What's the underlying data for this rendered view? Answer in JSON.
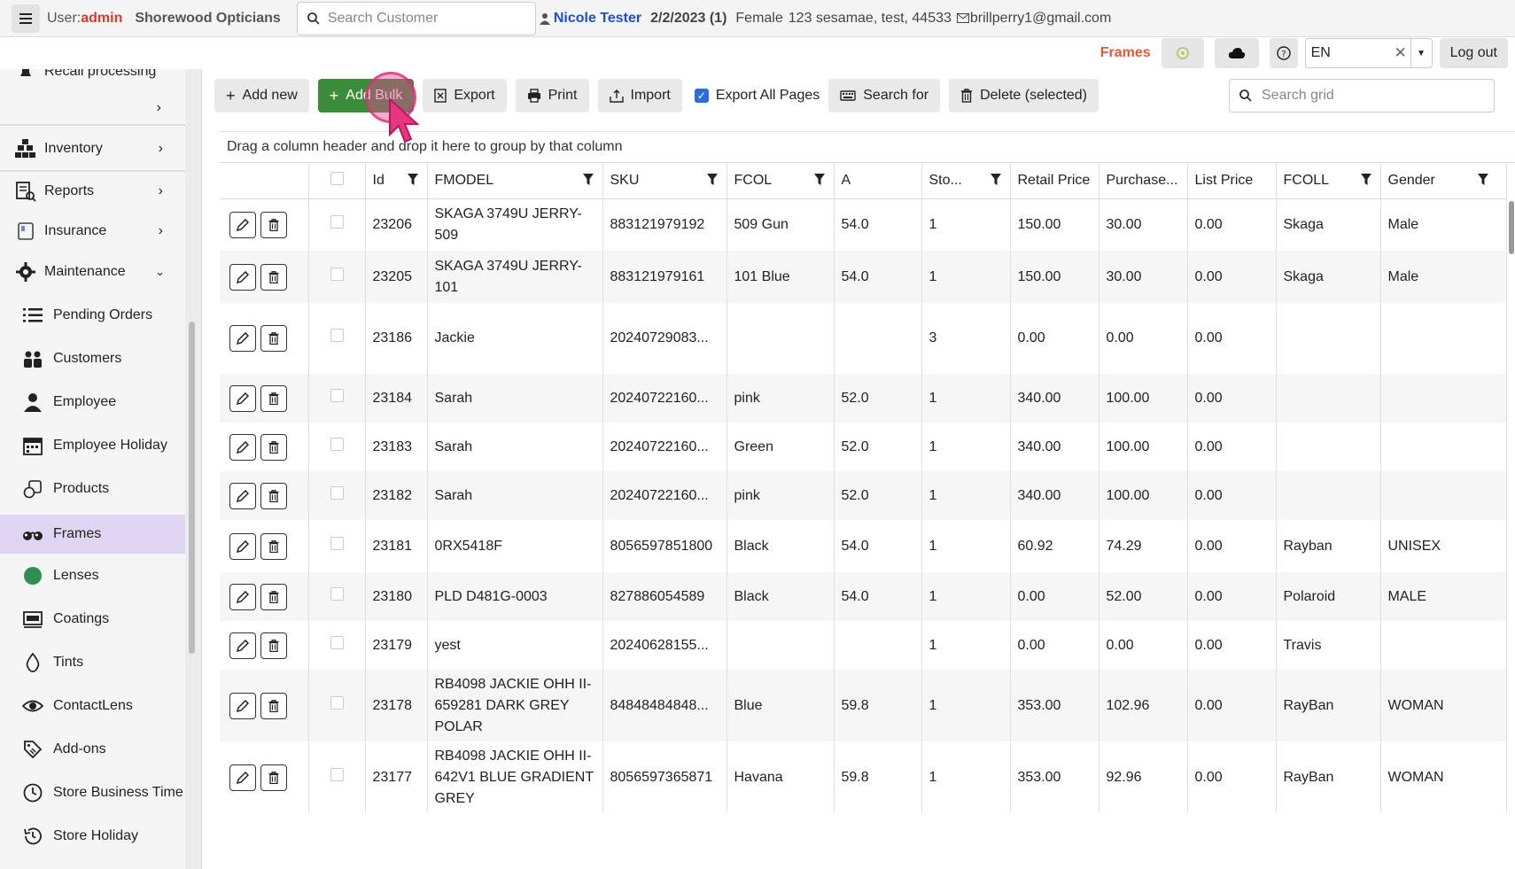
{
  "topbar": {
    "user_prefix": "User:",
    "user_name": "admin",
    "store_name": "Shorewood Opticians",
    "search_placeholder": "Search Customer",
    "patient_name": "Nicole Tester",
    "patient_date": "2/2/2023 (1)",
    "patient_gender": "Female",
    "patient_address": "123 sesamae, test, 44533",
    "patient_email": "brillperry1@gmail.com"
  },
  "secondbar": {
    "page_title": "Frames",
    "language": "EN",
    "logout_label": "Log out"
  },
  "sidebar": {
    "partial_top": "Recall processing",
    "inventory": "Inventory",
    "reports": "Reports",
    "insurance": "Insurance",
    "maintenance": "Maintenance",
    "items": [
      {
        "label": "Pending Orders"
      },
      {
        "label": "Customers"
      },
      {
        "label": "Employee"
      },
      {
        "label": "Employee Holiday"
      },
      {
        "label": "Products"
      },
      {
        "label": "Frames"
      },
      {
        "label": "Lenses"
      },
      {
        "label": "Coatings"
      },
      {
        "label": "Tints"
      },
      {
        "label": "ContactLens"
      },
      {
        "label": "Add-ons"
      },
      {
        "label": "Store Business Time"
      },
      {
        "label": "Store Holiday"
      }
    ]
  },
  "toolbar": {
    "add_new": "Add new",
    "add_bulk": "Add Bulk",
    "export": "Export",
    "print": "Print",
    "import": "Import",
    "export_all_pages": "Export All Pages",
    "search_for": "Search for",
    "delete_selected": "Delete (selected)",
    "grid_search_placeholder": "Search grid"
  },
  "grid": {
    "group_hint": "Drag a column header and drop it here to group by that column",
    "columns": [
      "Id",
      "FMODEL",
      "SKU",
      "FCOL",
      "A",
      "Sto...",
      "Retail Price",
      "Purchase...",
      "List Price",
      "FCOLL",
      "Gender"
    ],
    "rows": [
      [
        "23206",
        "SKAGA 3749U JERRY-509",
        "883121979192",
        "509 Gun",
        "54.0",
        "1",
        "150.00",
        "30.00",
        "0.00",
        "Skaga",
        "Male"
      ],
      [
        "23205",
        "SKAGA 3749U JERRY-101",
        "883121979161",
        "101 Blue",
        "54.0",
        "1",
        "150.00",
        "30.00",
        "0.00",
        "Skaga",
        "Male"
      ],
      [
        "23186",
        "Jackie",
        "20240729083...",
        "",
        "",
        "3",
        "0.00",
        "0.00",
        "0.00",
        "",
        ""
      ],
      [
        "23184",
        "Sarah",
        "20240722160...",
        "pink",
        "52.0",
        "1",
        "340.00",
        "100.00",
        "0.00",
        "",
        ""
      ],
      [
        "23183",
        "Sarah",
        "20240722160...",
        "Green",
        "52.0",
        "1",
        "340.00",
        "100.00",
        "0.00",
        "",
        ""
      ],
      [
        "23182",
        "Sarah",
        "20240722160...",
        "pink",
        "52.0",
        "1",
        "340.00",
        "100.00",
        "0.00",
        "",
        ""
      ],
      [
        "23181",
        "0RX5418F",
        "8056597851800",
        "Black",
        "54.0",
        "1",
        "60.92",
        "74.29",
        "0.00",
        "Rayban",
        "UNISEX"
      ],
      [
        "23180",
        "PLD D481G-0003",
        "827886054589",
        "Black",
        "54.0",
        "1",
        "0.00",
        "52.00",
        "0.00",
        "Polaroid",
        "MALE"
      ],
      [
        "23179",
        "yest",
        "20240628155...",
        "",
        "",
        "1",
        "0.00",
        "0.00",
        "0.00",
        "Travis",
        ""
      ],
      [
        "23178",
        "RB4098 JACKIE OHH II-659281 DARK GREY POLAR",
        "84848484848...",
        "Blue",
        "59.8",
        "1",
        "353.00",
        "102.96",
        "0.00",
        "RayBan",
        "WOMAN"
      ],
      [
        "23177",
        "RB4098 JACKIE OHH II-642V1 BLUE GRADIENT GREY",
        "8056597365871",
        "Havana",
        "59.8",
        "1",
        "353.00",
        "92.96",
        "0.00",
        "RayBan",
        "WOMAN"
      ]
    ]
  },
  "colors": {
    "accent_red": "#d63a2f",
    "patient_blue": "#1b4fd4",
    "add_bulk_green": "#3a8b3a",
    "active_menu": "#e0d6f3"
  }
}
